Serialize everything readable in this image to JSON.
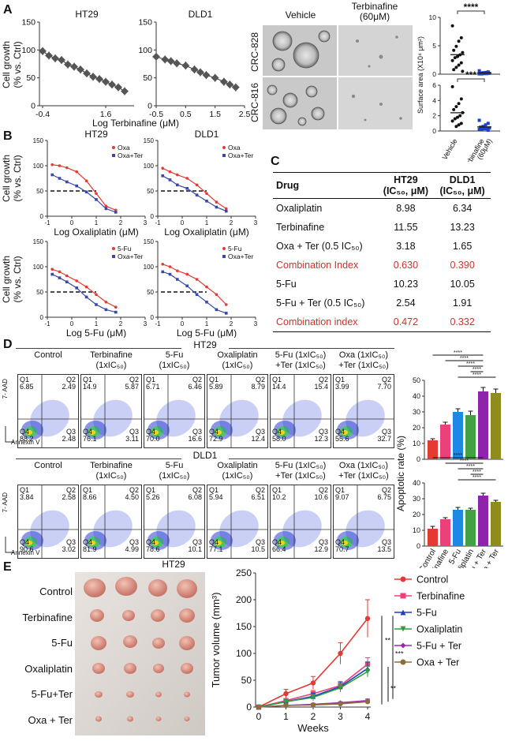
{
  "panels": {
    "A": "A",
    "B": "B",
    "C": "C",
    "D": "D",
    "E": "E"
  },
  "panelA": {
    "ylabel": "Cell growth\n(% vs. Ctrl)",
    "xlabel": "Log Terbinafine (μM)",
    "micro": {
      "col_vehicle": "Vehicle",
      "col_ter": "Terbinafine\n(60μM)",
      "row1": "CRC-828",
      "row2": "CRC-816"
    },
    "surface": {
      "ylabel": "Surface area (X10⁴ μm²)",
      "sig1": "****",
      "sig2": "***",
      "x1": "Vehicle",
      "x2": "Terbinafine\n(60μM)"
    }
  },
  "panelC": {
    "head": [
      "Drug",
      "HT29",
      "DLD1"
    ],
    "head_sub": [
      "",
      "(IC₅₀, μM)",
      "(IC₅₀, μM)"
    ],
    "rows": [
      {
        "drug": "Oxaliplatin",
        "ht29": "8.98",
        "dld1": "6.34",
        "red": false
      },
      {
        "drug": "Terbinafine",
        "ht29": "11.55",
        "dld1": "13.23",
        "red": false
      },
      {
        "drug": "Oxa + Ter (0.5 IC₅₀)",
        "ht29": "3.18",
        "dld1": "1.65",
        "red": false
      },
      {
        "drug": "Combination Index",
        "ht29": "0.630",
        "dld1": "0.390",
        "red": true
      },
      {
        "drug": "5-Fu",
        "ht29": "10.23",
        "dld1": "10.05",
        "red": false
      },
      {
        "drug": "5-Fu + Ter (0.5 IC₅₀)",
        "ht29": "2.54",
        "dld1": "1.91",
        "red": false
      },
      {
        "drug": "Combination index",
        "ht29": "0.472",
        "dld1": "0.332",
        "red": true
      }
    ]
  },
  "panelD": {
    "axis_y": "7- AAD",
    "axis_x": "Annexin V",
    "headers": [
      "Control",
      "Terbinafine\n(1xIC₅₀)",
      "5-Fu\n(1xIC₅₀)",
      "Oxaliplatin\n(1xIC₅₀)",
      "5-Fu (1xIC₅₀)\n+Ter (1xIC₅₀)",
      "Oxa (1xIC₅₀)\n+Ter (1xIC₅₀)"
    ],
    "ht29": {
      "title": "HT29",
      "q": [
        [
          "6.85",
          "2.49",
          "88.2",
          "2.48"
        ],
        [
          "14.9",
          "5.87",
          "76.1",
          "3.11"
        ],
        [
          "6.71",
          "6.46",
          "70.0",
          "16.6"
        ],
        [
          "5.89",
          "8.79",
          "72.9",
          "12.4"
        ],
        [
          "14.4",
          "15.4",
          "58.0",
          "12.3"
        ],
        [
          "3.99",
          "7.70",
          "55.6",
          "32.7"
        ]
      ]
    },
    "dld1": {
      "title": "DLD1",
      "q": [
        [
          "3.84",
          "2.58",
          "90.6",
          "3.02"
        ],
        [
          "8.66",
          "4.50",
          "81.9",
          "4.99"
        ],
        [
          "5.26",
          "6.08",
          "78.6",
          "10.1"
        ],
        [
          "5.94",
          "6.51",
          "77.1",
          "10.5"
        ],
        [
          "10.2",
          "10.6",
          "66.4",
          "12.9"
        ],
        [
          "9.07",
          "6.75",
          "70.7",
          "13.5"
        ]
      ]
    },
    "quad_labels": [
      "Q1",
      "Q2",
      "Q4",
      "Q3"
    ],
    "bar_ylabel": "Apoptotic rate (%)",
    "sig": "****"
  },
  "panelE": {
    "photo_title": "HT29",
    "groups": [
      "Control",
      "Terbinafine",
      "5-Fu",
      "Oxaliplatin",
      "5-Fu+Ter",
      "Oxa + Ter"
    ],
    "sig": [
      "**",
      "***",
      "**"
    ]
  },
  "chart_data": [
    {
      "type": "line",
      "id": "A-HT29",
      "title": "HT29",
      "x": [
        -0.4,
        -0.2,
        0,
        0.2,
        0.4,
        0.6,
        0.8,
        1.0,
        1.2,
        1.4,
        1.6,
        1.8,
        2.0,
        2.2
      ],
      "values": [
        98,
        90,
        85,
        82,
        74,
        70,
        65,
        58,
        52,
        48,
        43,
        38,
        33,
        26
      ],
      "ylim": [
        0,
        150
      ],
      "yticks": [
        0,
        50,
        100,
        150
      ],
      "xticks": [
        "-0.4",
        "1.6"
      ]
    },
    {
      "type": "line",
      "id": "A-DLD1",
      "title": "DLD1",
      "x": [
        -0.5,
        -0.2,
        0,
        0.2,
        0.5,
        0.8,
        1.0,
        1.2,
        1.5,
        1.8,
        2.0,
        2.2
      ],
      "values": [
        88,
        83,
        80,
        76,
        72,
        65,
        60,
        55,
        50,
        43,
        38,
        33
      ],
      "ylim": [
        0,
        150
      ],
      "yticks": [
        0,
        50,
        100,
        150
      ],
      "xticks": [
        "-0.5",
        "0.5",
        "1.5",
        "2.5"
      ]
    },
    {
      "type": "scatter",
      "id": "A-surface-828",
      "categories": [
        "Vehicle",
        "Terbinafine (60μM)"
      ],
      "series": [
        {
          "name": "Vehicle",
          "values": [
            8.5,
            6.4,
            5.8,
            4.9,
            4.2,
            3.8,
            3.4,
            3.1,
            2.9,
            2.4,
            2.0,
            1.6,
            1.2,
            0.8,
            0.5
          ]
        },
        {
          "name": "Terbinafine (60μM)",
          "values": [
            0.6,
            0.4,
            0.3,
            0.25,
            0.2,
            0.15,
            0.1,
            0.1,
            0.05,
            0.05
          ]
        }
      ],
      "ylim": [
        0,
        10
      ]
    },
    {
      "type": "scatter",
      "id": "A-surface-816",
      "categories": [
        "Vehicle",
        "Terbinafine (60μM)"
      ],
      "series": [
        {
          "name": "Vehicle",
          "values": [
            5.8,
            4.2,
            3.6,
            3.2,
            2.8,
            2.4,
            2.0,
            1.8,
            1.6,
            1.3,
            1.0,
            0.8,
            0.6
          ]
        },
        {
          "name": "Terbinafine (60μM)",
          "values": [
            1.4,
            1.0,
            0.8,
            0.6,
            0.5,
            0.4,
            0.3,
            0.3,
            0.2,
            0.2,
            0.1
          ]
        }
      ],
      "ylim": [
        0,
        6
      ]
    },
    {
      "type": "line",
      "id": "B-HT29-Oxa",
      "title": "HT29",
      "xlabel": "Log Oxaliplatin (μM)",
      "ylim": [
        0,
        150
      ],
      "yticks": [
        0,
        50,
        100,
        150
      ],
      "xticks": [
        -1,
        0,
        1,
        2,
        3
      ],
      "series": [
        {
          "name": "Oxa",
          "color": "#e53935",
          "x": [
            -0.8,
            -0.5,
            -0.2,
            0.2,
            0.6,
            1.0,
            1.4,
            1.8
          ],
          "values": [
            102,
            100,
            96,
            88,
            70,
            45,
            20,
            12
          ]
        },
        {
          "name": "Oxa+Ter",
          "color": "#3949ab",
          "x": [
            -0.8,
            -0.5,
            -0.2,
            0.2,
            0.6,
            1.0,
            1.4,
            1.8
          ],
          "values": [
            82,
            75,
            68,
            60,
            48,
            33,
            15,
            8
          ]
        }
      ]
    },
    {
      "type": "line",
      "id": "B-DLD1-Oxa",
      "title": "DLD1",
      "xlabel": "Log Oxaliplatin (μM)",
      "ylim": [
        0,
        150
      ],
      "yticks": [
        0,
        50,
        100,
        150
      ],
      "xticks": [
        -1,
        0,
        1,
        2,
        3
      ],
      "series": [
        {
          "name": "Oxa",
          "color": "#e53935",
          "x": [
            -0.8,
            -0.5,
            -0.2,
            0.2,
            0.6,
            1.0,
            1.4,
            1.8
          ],
          "values": [
            95,
            88,
            82,
            75,
            62,
            45,
            28,
            15
          ]
        },
        {
          "name": "Oxa+Ter",
          "color": "#3949ab",
          "x": [
            -0.8,
            -0.5,
            -0.2,
            0.2,
            0.6,
            1.0,
            1.4,
            1.8
          ],
          "values": [
            80,
            72,
            62,
            55,
            42,
            30,
            18,
            10
          ]
        }
      ]
    },
    {
      "type": "line",
      "id": "B-HT29-5Fu",
      "xlabel": "Log 5-Fu (μM)",
      "ylim": [
        0,
        150
      ],
      "yticks": [
        0,
        50,
        100,
        150
      ],
      "xticks": [
        -1,
        0,
        1,
        2,
        3
      ],
      "series": [
        {
          "name": "5-Fu",
          "color": "#e53935",
          "x": [
            -0.8,
            -0.5,
            -0.2,
            0.2,
            0.6,
            1.0,
            1.4,
            1.8
          ],
          "values": [
            95,
            90,
            82,
            72,
            60,
            45,
            30,
            20
          ]
        },
        {
          "name": "Oxa+Ter",
          "color": "#3949ab",
          "x": [
            -0.8,
            -0.5,
            -0.2,
            0.2,
            0.6,
            1.0,
            1.4,
            1.8
          ],
          "values": [
            85,
            78,
            70,
            58,
            40,
            25,
            15,
            10
          ]
        }
      ]
    },
    {
      "type": "line",
      "id": "B-DLD1-5Fu",
      "xlabel": "Log 5-Fu (μM)",
      "ylim": [
        0,
        150
      ],
      "yticks": [
        0,
        50,
        100,
        150
      ],
      "xticks": [
        -1,
        0,
        1,
        2,
        3
      ],
      "series": [
        {
          "name": "5-Fu",
          "color": "#e53935",
          "x": [
            -0.8,
            -0.5,
            -0.2,
            0.2,
            0.6,
            1.0,
            1.4,
            1.8
          ],
          "values": [
            105,
            100,
            92,
            85,
            75,
            60,
            45,
            25
          ]
        },
        {
          "name": "Oxa+Ter",
          "color": "#3949ab",
          "x": [
            -0.8,
            -0.5,
            -0.2,
            0.2,
            0.6,
            1.0,
            1.4,
            1.8
          ],
          "values": [
            90,
            85,
            75,
            62,
            45,
            30,
            15,
            8
          ]
        }
      ]
    },
    {
      "type": "bar",
      "id": "D-HT29",
      "categories": [
        "Control",
        "Terbinafine",
        "5-Fu",
        "Oxaliplatin",
        "5-Fu + Ter",
        "Oxa + Ter"
      ],
      "values": [
        12,
        22,
        30,
        28,
        43,
        42
      ],
      "errors": [
        1,
        1.5,
        2,
        2.5,
        2.5,
        2.5
      ],
      "colors": [
        "#e53935",
        "#ec407a",
        "#1e88e5",
        "#43a047",
        "#8e24aa",
        "#8d8d1e"
      ],
      "ylim": [
        0,
        50
      ],
      "yticks": [
        0,
        10,
        20,
        30,
        40,
        50
      ]
    },
    {
      "type": "bar",
      "id": "D-DLD1",
      "categories": [
        "Control",
        "Terbinafine",
        "5-Fu",
        "Oxaliplatin",
        "5-Fu + Ter",
        "Oxa + Ter"
      ],
      "values": [
        11,
        17,
        23,
        23,
        32,
        28
      ],
      "errors": [
        1.5,
        1,
        1.5,
        1,
        1.5,
        1
      ],
      "colors": [
        "#e53935",
        "#ec407a",
        "#1e88e5",
        "#43a047",
        "#8e24aa",
        "#8d8d1e"
      ],
      "ylim": [
        0,
        40
      ],
      "yticks": [
        0,
        10,
        20,
        30,
        40
      ]
    },
    {
      "type": "line",
      "id": "E-volume",
      "xlabel": "Weeks",
      "ylabel": "Tumor volume (mm³)",
      "ylim": [
        0,
        250
      ],
      "yticks": [
        0,
        50,
        100,
        150,
        200,
        250
      ],
      "x": [
        0,
        1,
        2,
        3,
        4
      ],
      "series": [
        {
          "name": "Control",
          "color": "#e53935",
          "values": [
            0,
            25,
            45,
            100,
            165
          ],
          "errors": [
            0,
            8,
            12,
            20,
            35
          ]
        },
        {
          "name": "Terbinafine",
          "color": "#ec407a",
          "values": [
            0,
            12,
            25,
            40,
            80
          ],
          "errors": [
            0,
            4,
            6,
            8,
            12
          ]
        },
        {
          "name": "5-Fu",
          "color": "#1e3fbf",
          "values": [
            0,
            10,
            20,
            38,
            72
          ],
          "errors": [
            0,
            4,
            6,
            8,
            12
          ]
        },
        {
          "name": "Oxaliplatin",
          "color": "#2e9e3e",
          "values": [
            0,
            10,
            18,
            36,
            66
          ],
          "errors": [
            0,
            4,
            6,
            8,
            10
          ]
        },
        {
          "name": "5-Fu + Ter",
          "color": "#9c27b0",
          "values": [
            0,
            3,
            5,
            8,
            12
          ],
          "errors": [
            0,
            1,
            2,
            2,
            3
          ]
        },
        {
          "name": "Oxa + Ter",
          "color": "#8d6e3a",
          "values": [
            0,
            3,
            4,
            6,
            10
          ],
          "errors": [
            0,
            1,
            1,
            2,
            3
          ]
        }
      ]
    }
  ]
}
